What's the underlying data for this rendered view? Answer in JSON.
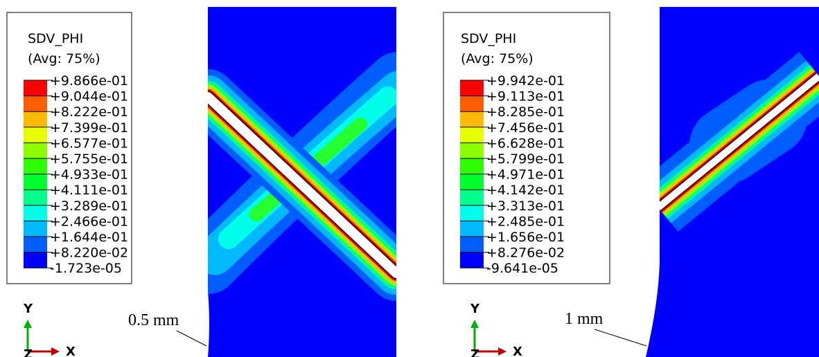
{
  "panels": [
    {
      "legend": {
        "title": "SDV_PHI",
        "subtitle": "(Avg: 75%)",
        "labels": [
          "+9.866e-01",
          "+9.044e-01",
          "+8.222e-01",
          "+7.399e-01",
          "+6.577e-01",
          "+5.755e-01",
          "+4.933e-01",
          "+4.111e-01",
          "+3.289e-01",
          "+2.466e-01",
          "+1.644e-01",
          "+8.220e-02",
          "-1.723e-05"
        ],
        "colors": [
          "#ff0000",
          "#ff5d00",
          "#ffb900",
          "#e8ff00",
          "#8bff00",
          "#2eff00",
          "#00ff2e",
          "#00ff8b",
          "#00ffe8",
          "#00b9ff",
          "#005dff",
          "#0000ff"
        ]
      },
      "annotation": "0.5 mm",
      "axes": {
        "y": "Y",
        "x": "X",
        "z": "Z"
      }
    },
    {
      "legend": {
        "title": "SDV_PHI",
        "subtitle": "(Avg: 75%)",
        "labels": [
          "+9.942e-01",
          "+9.113e-01",
          "+8.285e-01",
          "+7.456e-01",
          "+6.628e-01",
          "+5.799e-01",
          "+4.971e-01",
          "+4.142e-01",
          "+3.313e-01",
          "+2.485e-01",
          "+1.656e-01",
          "+8.276e-02",
          "-9.641e-05"
        ],
        "colors": [
          "#ff0000",
          "#ff5d00",
          "#ffb900",
          "#e8ff00",
          "#8bff00",
          "#2eff00",
          "#00ff2e",
          "#00ff8b",
          "#00ffe8",
          "#00b9ff",
          "#005dff",
          "#0000ff"
        ]
      },
      "annotation": "1 mm",
      "axes": {
        "y": "Y",
        "x": "X",
        "z": "Z"
      }
    }
  ]
}
